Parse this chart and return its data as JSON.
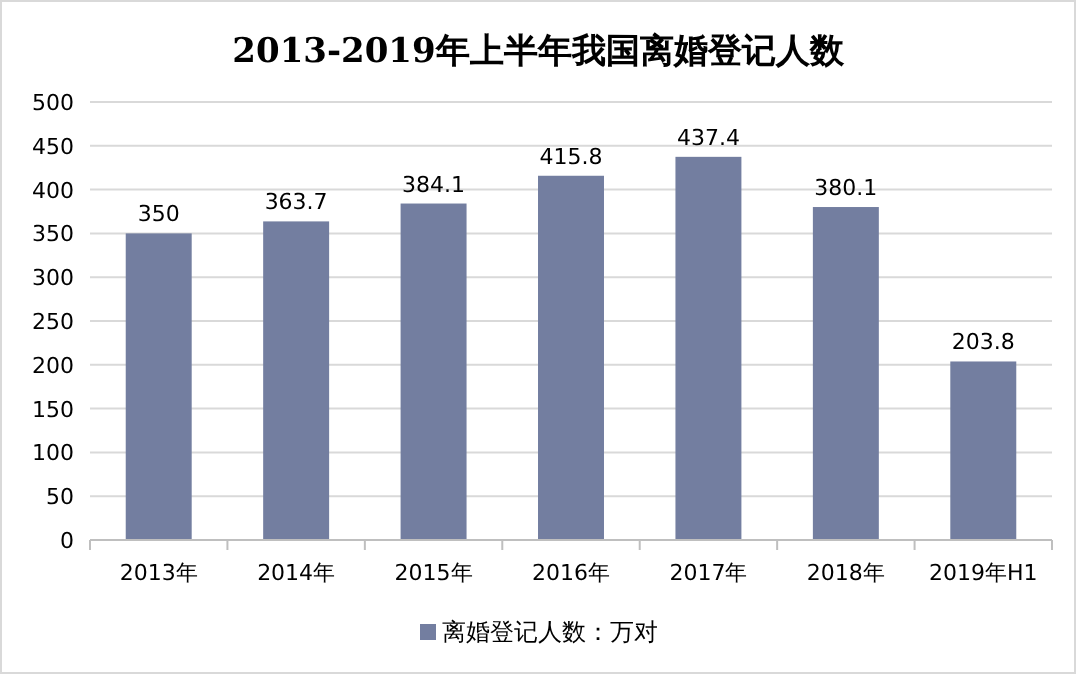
{
  "chart_data": {
    "type": "bar",
    "title": "2013-2019年上半年我国离婚登记人数",
    "categories": [
      "2013年",
      "2014年",
      "2015年",
      "2016年",
      "2017年",
      "2018年",
      "2019年H1"
    ],
    "series": [
      {
        "name": "离婚登记人数：万对",
        "color": "#737ea0",
        "values": [
          350,
          363.7,
          384.1,
          415.8,
          437.4,
          380.1,
          203.8
        ]
      }
    ],
    "ylim": [
      0,
      500
    ],
    "yticks": [
      0,
      50,
      100,
      150,
      200,
      250,
      300,
      350,
      400,
      450,
      500
    ],
    "grid": "y",
    "legend": "bottom",
    "data_labels": true
  }
}
